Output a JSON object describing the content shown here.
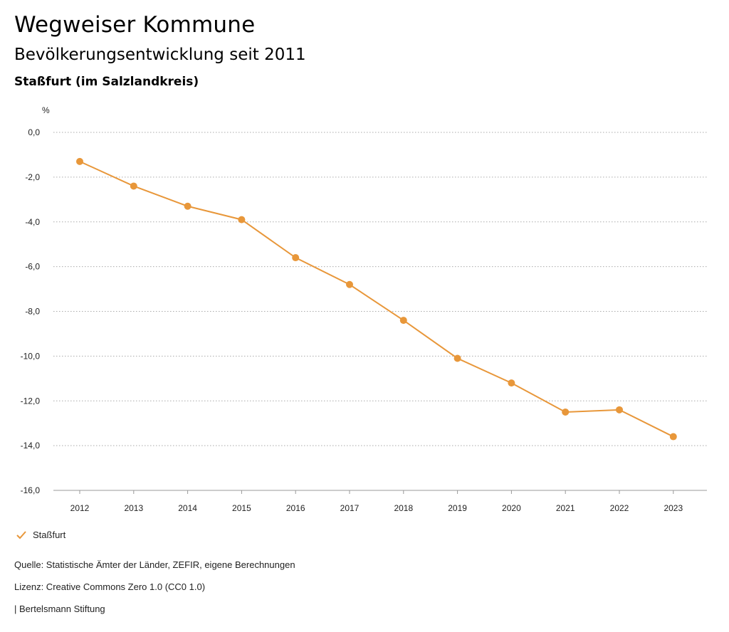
{
  "header": {
    "title": "Wegweiser Kommune",
    "subtitle": "Bevölkerungsentwicklung seit 2011",
    "region": "Staßfurt (im Salzlandkreis)"
  },
  "chart_data": {
    "type": "line",
    "ylabel": "%",
    "x": [
      "2012",
      "2013",
      "2014",
      "2015",
      "2016",
      "2017",
      "2018",
      "2019",
      "2020",
      "2021",
      "2022",
      "2023"
    ],
    "series": [
      {
        "name": "Staßfurt",
        "color": "#e8973a",
        "values": [
          -1.3,
          -2.4,
          -3.3,
          -3.9,
          -5.6,
          -6.8,
          -8.4,
          -10.1,
          -11.2,
          -12.5,
          -12.4,
          -13.6
        ]
      }
    ],
    "ylim": [
      -16,
      0
    ],
    "yticks": [
      0,
      -2,
      -4,
      -6,
      -8,
      -10,
      -12,
      -14,
      -16
    ],
    "ytick_labels": [
      "0,0",
      "-2,0",
      "-4,0",
      "-6,0",
      "-8,0",
      "-10,0",
      "-12,0",
      "-14,0",
      "-16,0"
    ],
    "grid": true,
    "legend": "bottom-left"
  },
  "legend": {
    "label": "Staßfurt",
    "icon": "check-icon"
  },
  "footer": {
    "source": "Quelle: Statistische Ämter der Länder, ZEFIR, eigene Berechnungen",
    "license": "Lizenz: Creative Commons Zero 1.0 (CC0 1.0)",
    "publisher": "| Bertelsmann Stiftung"
  }
}
